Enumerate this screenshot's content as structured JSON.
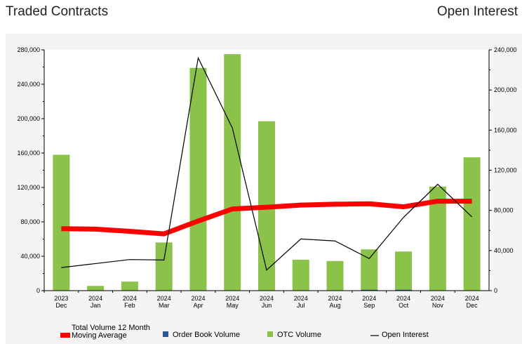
{
  "header": {
    "left_title": "Traded Contracts",
    "right_title": "Open Interest"
  },
  "chart_data": {
    "type": "bar",
    "categories": [
      [
        "2023",
        "Dec"
      ],
      [
        "2024",
        "Jan"
      ],
      [
        "2024",
        "Feb"
      ],
      [
        "2024",
        "Mar"
      ],
      [
        "2024",
        "Apr"
      ],
      [
        "2024",
        "May"
      ],
      [
        "2024",
        "Jun"
      ],
      [
        "2024",
        "Jul"
      ],
      [
        "2024",
        "Aug"
      ],
      [
        "2024",
        "Sep"
      ],
      [
        "2024",
        "Oct"
      ],
      [
        "2024",
        "Nov"
      ],
      [
        "2024",
        "Dec"
      ]
    ],
    "y_left": {
      "min": 0,
      "max": 280000,
      "ticks": [
        0,
        40000,
        80000,
        120000,
        160000,
        200000,
        240000,
        280000
      ],
      "tick_labels": [
        "0",
        "40,000",
        "80,000",
        "120,000",
        "160,000",
        "200,000",
        "240,000",
        "280,000"
      ]
    },
    "y_right": {
      "min": 0,
      "max": 240000,
      "ticks": [
        0,
        40000,
        80000,
        120000,
        160000,
        200000,
        240000
      ],
      "tick_labels": [
        "0",
        "40,000",
        "80,000",
        "120,000",
        "160,000",
        "200,000",
        "240,000"
      ]
    },
    "grid": false,
    "legend_position": "bottom",
    "series": [
      {
        "name": "OTC Volume",
        "kind": "bar",
        "axis": "left",
        "color": "#8bc34a",
        "values": [
          158000,
          5500,
          10500,
          56000,
          259000,
          275000,
          197000,
          36000,
          34500,
          48000,
          45500,
          121000,
          155000
        ]
      },
      {
        "name": "Order Book Volume",
        "kind": "bar",
        "axis": "left",
        "color": "#2f5597",
        "values": [
          0,
          0,
          0,
          0,
          0,
          0,
          0,
          0,
          0,
          1000,
          1000,
          0,
          0
        ]
      },
      {
        "name": "Total Volume 12 Month Moving Average",
        "kind": "line",
        "axis": "left",
        "color": "#ff0000",
        "values": [
          72000,
          71500,
          69000,
          66000,
          81000,
          95000,
          97000,
          99500,
          100500,
          101000,
          97500,
          104000,
          104000
        ]
      },
      {
        "name": "Open Interest",
        "kind": "line",
        "axis": "right",
        "color": "#000000",
        "values": [
          23000,
          27000,
          31000,
          30500,
          232000,
          162000,
          20500,
          51500,
          49500,
          32000,
          73000,
          106000,
          73500
        ]
      }
    ]
  },
  "legend": [
    {
      "label_lines": [
        "Total Volume 12 Month",
        "Moving Average"
      ],
      "color": "#ff0000",
      "swatch": "thick-line"
    },
    {
      "label_lines": [
        "Order Book Volume"
      ],
      "color": "#2f5597",
      "swatch": "square"
    },
    {
      "label_lines": [
        "OTC Volume"
      ],
      "color": "#8bc34a",
      "swatch": "square"
    },
    {
      "label_lines": [
        "Open Interest"
      ],
      "color": "#000000",
      "swatch": "thin-line"
    }
  ]
}
